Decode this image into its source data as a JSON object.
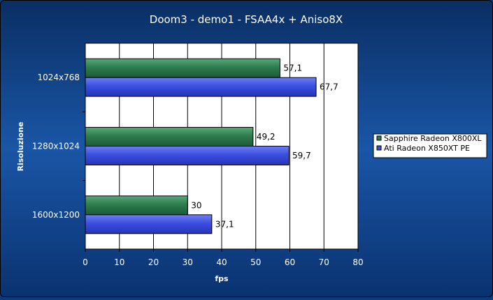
{
  "chart_data": {
    "type": "bar",
    "orientation": "horizontal",
    "title": "Doom3 - demo1 - FSAA4x + Aniso8X",
    "xlabel": "fps",
    "ylabel": "Risoluzione",
    "categories": [
      "1024x768",
      "1280x1024",
      "1600x1200"
    ],
    "series": [
      {
        "name": "Sapphire Radeon X800XL",
        "values": [
          57.1,
          49.2,
          30
        ],
        "value_labels": [
          "57,1",
          "49,2",
          "30"
        ],
        "color": "#2e7d4e"
      },
      {
        "name": "Ati Radeon X850XT PE",
        "values": [
          67.7,
          59.7,
          37.1
        ],
        "value_labels": [
          "67,7",
          "59,7",
          "37,1"
        ],
        "color": "#3b4fe0"
      }
    ],
    "xlim": [
      0,
      80
    ],
    "xticks": [
      0,
      10,
      20,
      30,
      40,
      50,
      60,
      70,
      80
    ],
    "xtick_labels": [
      "0",
      "10",
      "20",
      "30",
      "40",
      "50",
      "60",
      "70",
      "80"
    ],
    "grid": true,
    "legend_position": "right"
  },
  "colors": {
    "background": "#0d3a78",
    "plot_background": "#ffffff",
    "gridline": "#000000",
    "text": "#ffffff"
  }
}
